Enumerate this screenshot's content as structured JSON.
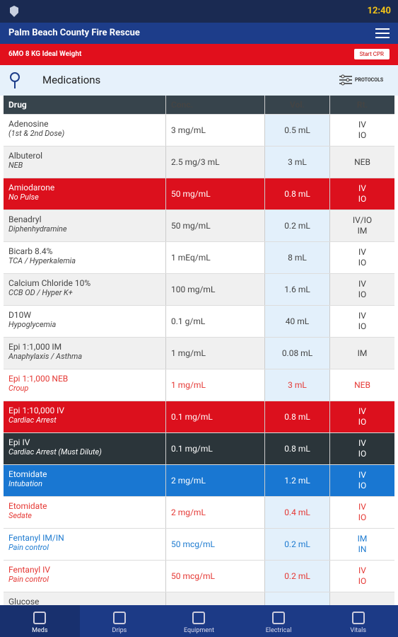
{
  "status_bar": {
    "time": "12:40"
  },
  "app_bar": {
    "title": "Palm Beach County Fire Rescue"
  },
  "patient_bar": {
    "weight": "6MO 8 KG Ideal Weight",
    "button": "Start CPR"
  },
  "section": {
    "title": "Medications",
    "protocols": "PROTOCOLS"
  },
  "table": {
    "headers": [
      "Drug",
      "Conc.",
      "Vol.",
      "Rt."
    ],
    "rows": [
      {
        "name": "Adenosine",
        "note": "(1st & 2nd Dose)",
        "conc": "3 mg/mL",
        "vol": "0.5 mL",
        "route": [
          "IV",
          "IO"
        ],
        "style": "white"
      },
      {
        "name": "Albuterol",
        "note": "NEB",
        "conc": "2.5 mg/3 mL",
        "vol": "3 mL",
        "route": [
          "NEB"
        ],
        "style": "gray"
      },
      {
        "name": "Amiodarone",
        "note": "No Pulse",
        "conc": "50 mg/mL",
        "vol": "0.8 mL",
        "route": [
          "IV",
          "IO"
        ],
        "style": "red"
      },
      {
        "name": "Benadryl",
        "note": "Diphenhydramine",
        "conc": "50 mg/mL",
        "vol": "0.2 mL",
        "route": [
          "IV/IO",
          "IM"
        ],
        "style": "gray"
      },
      {
        "name": "Bicarb 8.4%",
        "note": "TCA / Hyperkalemia",
        "conc": "1 mEq/mL",
        "vol": "8 mL",
        "route": [
          "IV",
          "IO"
        ],
        "style": "white"
      },
      {
        "name": "Calcium Chloride 10%",
        "note": "CCB OD / Hyper K+",
        "conc": "100 mg/mL",
        "vol": "1.6 mL",
        "route": [
          "IV",
          "IO"
        ],
        "style": "gray"
      },
      {
        "name": "D10W",
        "note": "Hypoglycemia",
        "conc": "0.1 g/mL",
        "vol": "40 mL",
        "route": [
          "IV",
          "IO"
        ],
        "style": "white"
      },
      {
        "name": "Epi 1:1,000 IM",
        "note": "Anaphylaxis / Asthma",
        "conc": "1 mg/mL",
        "vol": "0.08 mL",
        "route": [
          "IM"
        ],
        "style": "gray"
      },
      {
        "name": "Epi 1:1,000 NEB",
        "note": "Croup",
        "conc": "1 mg/mL",
        "vol": "3 mL",
        "route": [
          "NEB"
        ],
        "style": "redtext"
      },
      {
        "name": "Epi 1:10,000 IV",
        "note": "Cardiac Arrest",
        "conc": "0.1 mg/mL",
        "vol": "0.8 mL",
        "route": [
          "IV",
          "IO"
        ],
        "style": "red"
      },
      {
        "name": "Epi IV",
        "note": "Cardiac Arrest (Must Dilute)",
        "conc": "0.1 mg/mL",
        "vol": "0.8 mL",
        "route": [
          "IV",
          "IO"
        ],
        "style": "dark"
      },
      {
        "name": "Etomidate",
        "note": "Intubation",
        "conc": "2 mg/mL",
        "vol": "1.2 mL",
        "route": [
          "IV",
          "IO"
        ],
        "style": "blue"
      },
      {
        "name": "Etomidate",
        "note": "Sedate",
        "conc": "2 mg/mL",
        "vol": "0.4 mL",
        "route": [
          "IV",
          "IO"
        ],
        "style": "redtext"
      },
      {
        "name": "Fentanyl IM/IN",
        "note": "Pain control",
        "conc": "50 mcg/mL",
        "vol": "0.2 mL",
        "route": [
          "IM",
          "IN"
        ],
        "style": "bluetext"
      },
      {
        "name": "Fentanyl IV",
        "note": "Pain control",
        "conc": "50 mcg/mL",
        "vol": "0.2 mL",
        "route": [
          "IV",
          "IO"
        ],
        "style": "redtext"
      },
      {
        "name": "Glucose",
        "note": "",
        "conc": "",
        "vol": "",
        "route": [],
        "style": "gray"
      }
    ]
  },
  "nav": {
    "tabs": [
      "Meds",
      "Drips",
      "Equipment",
      "Electrical",
      "Vitals"
    ]
  }
}
